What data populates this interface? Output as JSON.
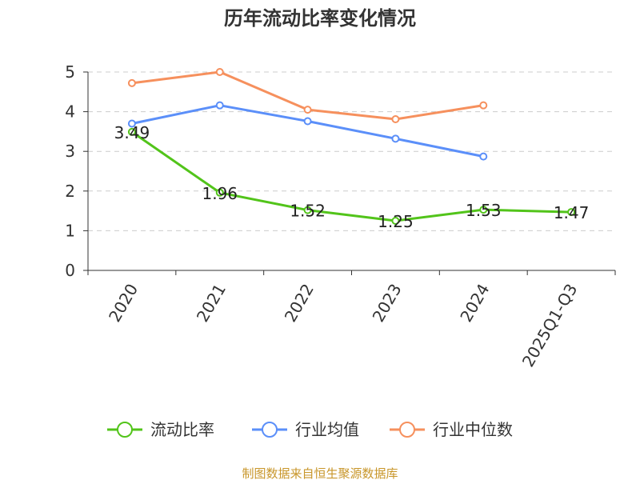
{
  "chart_data": {
    "type": "line",
    "title": "历年流动比率变化情况",
    "categories": [
      "2020",
      "2021",
      "2022",
      "2023",
      "2024",
      "2025Q1-Q3"
    ],
    "ylim": [
      0,
      5
    ],
    "yticks": [
      0,
      1,
      2,
      3,
      4,
      5
    ],
    "grid": true,
    "legend_position": "bottom",
    "series": [
      {
        "name": "流动比率",
        "color": "#52c41a",
        "values": [
          3.49,
          1.96,
          1.52,
          1.25,
          1.53,
          1.47
        ],
        "labels": [
          "3.49",
          "1.96",
          "1.52",
          "1.25",
          "1.53",
          "1.47"
        ]
      },
      {
        "name": "行业均值",
        "color": "#5b8ff9",
        "values": [
          3.7,
          4.16,
          3.76,
          3.32,
          2.87,
          null
        ]
      },
      {
        "name": "行业中位数",
        "color": "#f6905d",
        "values": [
          4.72,
          5.0,
          4.05,
          3.81,
          4.16,
          null
        ]
      }
    ],
    "source": "制图数据来自恒生聚源数据库",
    "source_color": "#c8962a"
  }
}
